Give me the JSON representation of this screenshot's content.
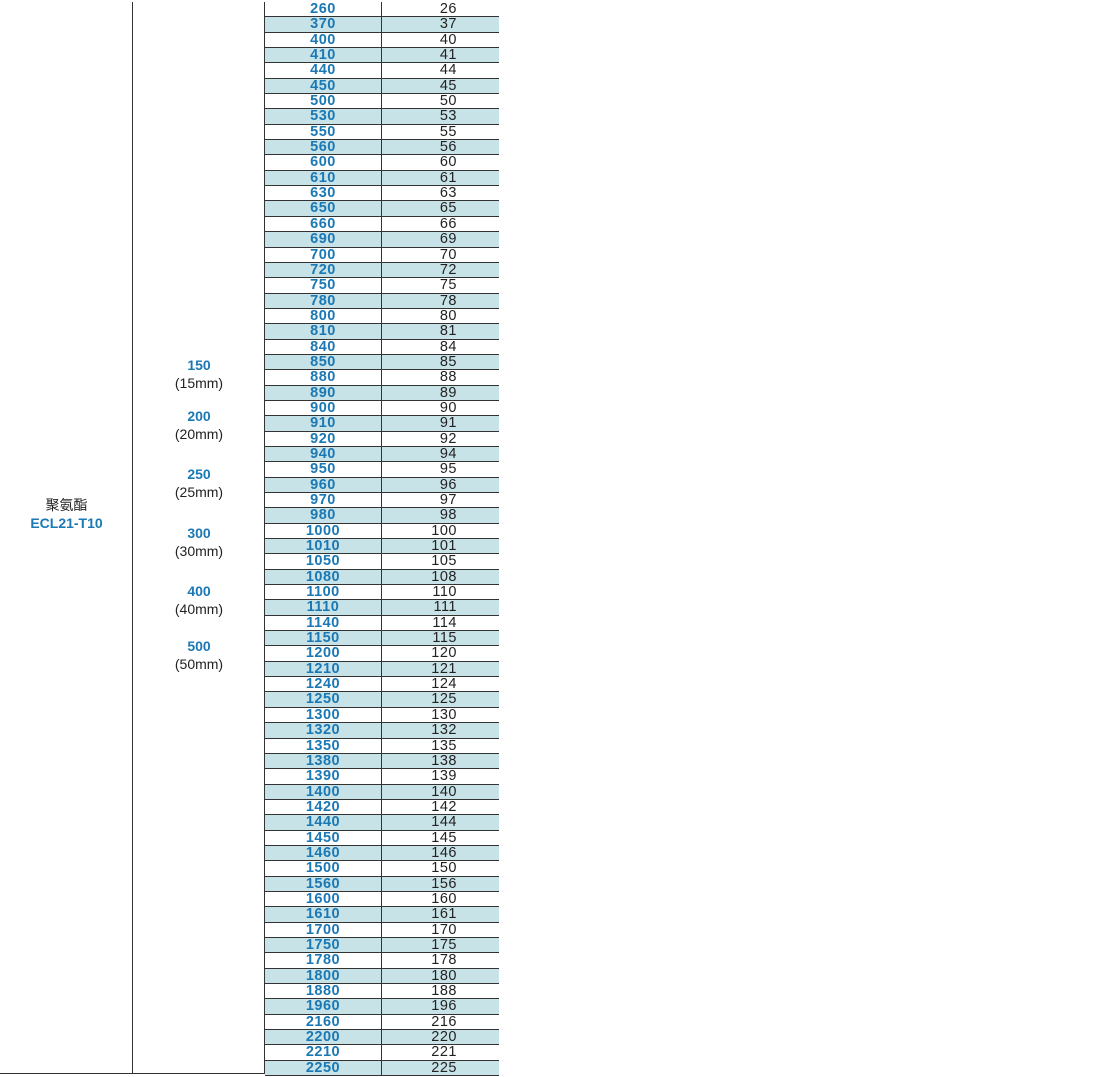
{
  "material": {
    "name": "聚氨酯",
    "code": "ECL21-T10"
  },
  "widths": [
    {
      "code": "150",
      "mm": "(15mm)"
    },
    {
      "code": "200",
      "mm": "(20mm)"
    },
    {
      "code": "250",
      "mm": "(25mm)"
    },
    {
      "code": "300",
      "mm": "(30mm)"
    },
    {
      "code": "400",
      "mm": "(40mm)"
    },
    {
      "code": "500",
      "mm": "(50mm)"
    }
  ],
  "rows": [
    {
      "length": "260",
      "teeth": "26"
    },
    {
      "length": "370",
      "teeth": "37"
    },
    {
      "length": "400",
      "teeth": "40"
    },
    {
      "length": "410",
      "teeth": "41"
    },
    {
      "length": "440",
      "teeth": "44"
    },
    {
      "length": "450",
      "teeth": "45"
    },
    {
      "length": "500",
      "teeth": "50"
    },
    {
      "length": "530",
      "teeth": "53"
    },
    {
      "length": "550",
      "teeth": "55"
    },
    {
      "length": "560",
      "teeth": "56"
    },
    {
      "length": "600",
      "teeth": "60"
    },
    {
      "length": "610",
      "teeth": "61"
    },
    {
      "length": "630",
      "teeth": "63"
    },
    {
      "length": "650",
      "teeth": "65"
    },
    {
      "length": "660",
      "teeth": "66"
    },
    {
      "length": "690",
      "teeth": "69"
    },
    {
      "length": "700",
      "teeth": "70"
    },
    {
      "length": "720",
      "teeth": "72"
    },
    {
      "length": "750",
      "teeth": "75"
    },
    {
      "length": "780",
      "teeth": "78"
    },
    {
      "length": "800",
      "teeth": "80"
    },
    {
      "length": "810",
      "teeth": "81"
    },
    {
      "length": "840",
      "teeth": "84"
    },
    {
      "length": "850",
      "teeth": "85"
    },
    {
      "length": "880",
      "teeth": "88"
    },
    {
      "length": "890",
      "teeth": "89"
    },
    {
      "length": "900",
      "teeth": "90"
    },
    {
      "length": "910",
      "teeth": "91"
    },
    {
      "length": "920",
      "teeth": "92"
    },
    {
      "length": "940",
      "teeth": "94"
    },
    {
      "length": "950",
      "teeth": "95"
    },
    {
      "length": "960",
      "teeth": "96"
    },
    {
      "length": "970",
      "teeth": "97"
    },
    {
      "length": "980",
      "teeth": "98"
    },
    {
      "length": "1000",
      "teeth": "100"
    },
    {
      "length": "1010",
      "teeth": "101"
    },
    {
      "length": "1050",
      "teeth": "105"
    },
    {
      "length": "1080",
      "teeth": "108"
    },
    {
      "length": "1100",
      "teeth": "110"
    },
    {
      "length": "1110",
      "teeth": "111"
    },
    {
      "length": "1140",
      "teeth": "114"
    },
    {
      "length": "1150",
      "teeth": "115"
    },
    {
      "length": "1200",
      "teeth": "120"
    },
    {
      "length": "1210",
      "teeth": "121"
    },
    {
      "length": "1240",
      "teeth": "124"
    },
    {
      "length": "1250",
      "teeth": "125"
    },
    {
      "length": "1300",
      "teeth": "130"
    },
    {
      "length": "1320",
      "teeth": "132"
    },
    {
      "length": "1350",
      "teeth": "135"
    },
    {
      "length": "1380",
      "teeth": "138"
    },
    {
      "length": "1390",
      "teeth": "139"
    },
    {
      "length": "1400",
      "teeth": "140"
    },
    {
      "length": "1420",
      "teeth": "142"
    },
    {
      "length": "1440",
      "teeth": "144"
    },
    {
      "length": "1450",
      "teeth": "145"
    },
    {
      "length": "1460",
      "teeth": "146"
    },
    {
      "length": "1500",
      "teeth": "150"
    },
    {
      "length": "1560",
      "teeth": "156"
    },
    {
      "length": "1600",
      "teeth": "160"
    },
    {
      "length": "1610",
      "teeth": "161"
    },
    {
      "length": "1700",
      "teeth": "170"
    },
    {
      "length": "1750",
      "teeth": "175"
    },
    {
      "length": "1780",
      "teeth": "178"
    },
    {
      "length": "1800",
      "teeth": "180"
    },
    {
      "length": "1880",
      "teeth": "188"
    },
    {
      "length": "1960",
      "teeth": "196"
    },
    {
      "length": "2160",
      "teeth": "216"
    },
    {
      "length": "2200",
      "teeth": "220"
    },
    {
      "length": "2210",
      "teeth": "221"
    },
    {
      "length": "2250",
      "teeth": "225"
    }
  ],
  "colors": {
    "accent": "#1a78b4",
    "row_alt": "#c8e3e7",
    "rule": "#333333"
  }
}
